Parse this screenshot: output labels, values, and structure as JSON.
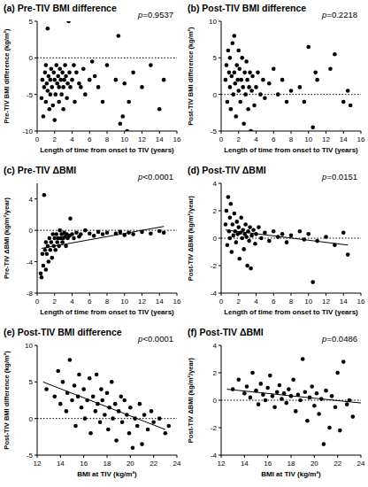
{
  "chart_data": [
    {
      "type": "scatter",
      "title": "(a) Pre-TIV BMI difference",
      "x_label": "Length of time from onset to TIV (years)",
      "y_label": "Pre-TIV BMI difference (kg/m²)",
      "annotation": "p=0.9537",
      "color": "#000000",
      "marker": "circle",
      "x": [
        0.5,
        0.6,
        0.7,
        0.8,
        0.9,
        1,
        1,
        1.1,
        1.2,
        1.2,
        1.3,
        1.4,
        1.5,
        1.5,
        1.6,
        1.7,
        1.8,
        1.9,
        2,
        2,
        2.1,
        2.2,
        2.3,
        2.4,
        2.5,
        2.5,
        2.6,
        2.7,
        2.8,
        2.9,
        3,
        3,
        3.1,
        3.2,
        3.3,
        3.4,
        3.5,
        3.6,
        3.7,
        3.8,
        4,
        4.2,
        4.3,
        4.5,
        4.8,
        5,
        5.3,
        5.5,
        6,
        6.3,
        6.6,
        7,
        7.5,
        8,
        9,
        9.3,
        9.5,
        9.8,
        10,
        10.3,
        10.5,
        11,
        12,
        13,
        14,
        14.5
      ],
      "values": [
        -5.5,
        -3,
        -8,
        -4,
        -2,
        -6,
        -1,
        -3.5,
        -4.5,
        4,
        -2.5,
        -7,
        -3,
        -5,
        -1.5,
        -4,
        -6.5,
        -2,
        -3,
        -8.5,
        -5,
        -1,
        -3.5,
        -2.5,
        -6,
        -4,
        -1.5,
        -3,
        -5,
        -2,
        -4,
        -7,
        -3,
        -1,
        -2.5,
        -5.5,
        -3.5,
        5,
        -2,
        -4,
        -3,
        -1,
        -6,
        -2,
        -3.5,
        -4,
        -1.5,
        -5,
        -3,
        -0.5,
        -2.5,
        -4,
        -6,
        -1,
        -3,
        3,
        -9,
        -8,
        -3.5,
        -10,
        -6,
        -2,
        -4,
        -1,
        -7,
        -3
      ],
      "xlim": [
        0,
        16
      ],
      "xticks": [
        0,
        2,
        4,
        6,
        8,
        10,
        12,
        14,
        16
      ],
      "ylim": [
        -10,
        5
      ],
      "yticks": [
        -10,
        -5,
        0,
        5
      ],
      "reference_line": 0
    },
    {
      "type": "scatter",
      "title": "(b) Post-TIV BMI difference",
      "x_label": "Length of time from onset to TIV (years)",
      "y_label": "Post-TIV BMI difference (kg/m²)",
      "annotation": "p=0.2218",
      "color": "#000000",
      "marker": "circle",
      "x": [
        0.5,
        0.6,
        0.7,
        0.8,
        0.9,
        1,
        1,
        1.1,
        1.2,
        1.3,
        1.4,
        1.5,
        1.5,
        1.6,
        1.7,
        1.8,
        1.9,
        2,
        2,
        2.1,
        2.2,
        2.3,
        2.4,
        2.5,
        2.6,
        2.7,
        2.8,
        2.9,
        3,
        3.1,
        3.2,
        3.3,
        3.4,
        3.5,
        3.6,
        3.8,
        4,
        4.2,
        4.5,
        4.8,
        5,
        5.5,
        6,
        6.5,
        7,
        7.5,
        8,
        9,
        9.5,
        10,
        10.5,
        10.8,
        11,
        12.5,
        13,
        14,
        14.5,
        14.8
      ],
      "values": [
        2,
        4,
        -1,
        6,
        3,
        1,
        5,
        -2,
        2.5,
        7,
        0,
        3,
        8,
        1.5,
        -3,
        4,
        2,
        0.5,
        6,
        3.5,
        -1,
        2,
        5,
        1,
        -4,
        3,
        0,
        4.5,
        2,
        -2,
        1,
        3,
        -5,
        0.5,
        2.5,
        -1.5,
        1,
        3,
        0,
        2,
        -0.5,
        1.5,
        3.5,
        0,
        2,
        -1,
        0.5,
        1,
        -1,
        6.5,
        -4.5,
        3,
        2,
        3.5,
        5.5,
        -1,
        0.5,
        -1.5
      ],
      "xlim": [
        0,
        16
      ],
      "xticks": [
        0,
        2,
        4,
        6,
        8,
        10,
        12,
        14,
        16
      ],
      "ylim": [
        -5,
        10
      ],
      "yticks": [
        -5,
        0,
        5,
        10
      ],
      "reference_line": 0
    },
    {
      "type": "scatter",
      "title": "(c) Pre-TIV ΔBMI",
      "x_label": "Length of time from onset to TIV (years)",
      "y_label": "Pre-TIV ΔBMI (kg/m²/year)",
      "annotation": "p<0.0001",
      "color": "#000000",
      "marker": "circle",
      "x": [
        0.4,
        0.5,
        0.6,
        0.7,
        0.8,
        0.9,
        1,
        1,
        1.1,
        1.2,
        1.3,
        1.4,
        1.5,
        1.6,
        1.7,
        1.8,
        1.9,
        2,
        2.1,
        2.2,
        2.3,
        2.4,
        2.5,
        2.6,
        2.7,
        2.8,
        2.9,
        3,
        3.1,
        3.2,
        3.3,
        3.4,
        3.5,
        3.7,
        3.8,
        4,
        4.2,
        4.5,
        4.8,
        5,
        5.5,
        6,
        6.5,
        7,
        7.5,
        8,
        9,
        9.5,
        10,
        10.5,
        11,
        12,
        13,
        14,
        14.5
      ],
      "values": [
        -5.5,
        -6,
        -3,
        -4.5,
        4.5,
        -2.5,
        -5,
        -1.5,
        -3,
        -2,
        -4,
        -1,
        -2.5,
        -1.5,
        -3.5,
        -0.5,
        -2,
        -1,
        -2.5,
        -0.5,
        -1.5,
        -1,
        -2,
        0,
        -1,
        -0.5,
        -1.5,
        -1,
        -0.3,
        -0.8,
        -2,
        -0.5,
        -1,
        -0.7,
        1.5,
        -0.5,
        -1,
        -0.3,
        -0.8,
        -0.5,
        0,
        -0.4,
        -0.7,
        -0.2,
        -0.5,
        -0.3,
        -0.4,
        -0.2,
        -0.6,
        -0.3,
        -0.5,
        -0.2,
        -0.4,
        -0.1,
        -0.3
      ],
      "xlim": [
        0,
        16
      ],
      "xticks": [
        0,
        2,
        4,
        6,
        8,
        10,
        12,
        14,
        16
      ],
      "ylim": [
        -8,
        6
      ],
      "yticks": [
        -8,
        -4,
        0,
        4
      ],
      "reference_line": 0,
      "trend_line": {
        "x": [
          0.5,
          14.5
        ],
        "values": [
          -2.3,
          0.5
        ]
      }
    },
    {
      "type": "scatter",
      "title": "(d) Post-TIV ΔBMI",
      "x_label": "Length of time from onset to TIV (years)",
      "y_label": "Post-TIV ΔBMI (kg/m²/year)",
      "annotation": "p=0.0151",
      "color": "#000000",
      "marker": "circle",
      "x": [
        0.5,
        0.6,
        0.7,
        0.8,
        0.9,
        1,
        1,
        1.1,
        1.2,
        1.3,
        1.4,
        1.5,
        1.6,
        1.7,
        1.8,
        1.9,
        2,
        2.1,
        2.2,
        2.3,
        2.4,
        2.5,
        2.6,
        2.7,
        2.8,
        2.9,
        3,
        3.1,
        3.2,
        3.3,
        3.4,
        3.5,
        3.7,
        3.9,
        4,
        4.3,
        4.6,
        5,
        5.5,
        6,
        6.5,
        7,
        7.5,
        8,
        9,
        9.5,
        10,
        10.5,
        11,
        12,
        13,
        14,
        14.5
      ],
      "values": [
        1,
        2,
        -0.5,
        3,
        0.5,
        1.5,
        0,
        2.5,
        -1,
        1,
        0.2,
        1.8,
        0.5,
        -0.3,
        1.2,
        0.3,
        0.8,
        -1.5,
        0.4,
        1.5,
        0,
        0.6,
        -0.8,
        0.3,
        1,
        0.1,
        -2,
        0.5,
        -0.2,
        0.8,
        -2.2,
        0.2,
        0.6,
        -0.4,
        0.3,
        0.8,
        0,
        0.4,
        -0.2,
        0.5,
        0.1,
        0.3,
        -0.3,
        0.2,
        0.5,
        -0.1,
        0.3,
        -3.2,
        -0.2,
        0.1,
        -0.5,
        0.4,
        -1.2
      ],
      "xlim": [
        0,
        16
      ],
      "xticks": [
        0,
        2,
        4,
        6,
        8,
        10,
        12,
        14,
        16
      ],
      "ylim": [
        -4,
        4
      ],
      "yticks": [
        -4,
        -2,
        0,
        2,
        4
      ],
      "reference_line": 0,
      "trend_line": {
        "x": [
          0.5,
          14.5
        ],
        "values": [
          0.6,
          -0.5
        ]
      }
    },
    {
      "type": "scatter",
      "title": "(e) Post-TIV BMI difference",
      "x_label": "BMI at TIV (kg/m²)",
      "y_label": "Post-TIV BMI difference (kg/m²)",
      "annotation": "p<0.0001",
      "color": "#000000",
      "marker": "circle",
      "x": [
        12.8,
        13.5,
        13.8,
        14,
        14.2,
        14.5,
        14.6,
        14.8,
        15,
        15.2,
        15.3,
        15.5,
        15.6,
        15.8,
        16,
        16.1,
        16.3,
        16.5,
        16.6,
        16.8,
        17,
        17.1,
        17.2,
        17.4,
        17.5,
        17.6,
        17.8,
        18,
        18.1,
        18.2,
        18.4,
        18.5,
        18.7,
        18.8,
        19,
        19.2,
        19.3,
        19.5,
        19.7,
        19.9,
        20,
        20.2,
        20.4,
        20.6,
        20.8,
        21,
        21.2,
        21.5,
        21.8,
        22,
        22.5,
        23,
        23.3
      ],
      "values": [
        4,
        3,
        6.5,
        2,
        5,
        1,
        3.5,
        8,
        2.5,
        4.5,
        -1,
        3,
        6,
        1.5,
        4,
        0,
        2.5,
        5.5,
        -2,
        3,
        1,
        6,
        2,
        -0.5,
        4,
        2.5,
        0.5,
        3.5,
        -1.5,
        1.5,
        5,
        0,
        2,
        -3,
        1,
        3,
        -0.5,
        2.5,
        0.5,
        -2,
        1.5,
        -4,
        0,
        -1,
        2,
        -3.5,
        0.5,
        -1.5,
        1,
        -0.5,
        0,
        -2,
        -1
      ],
      "xlim": [
        12,
        24
      ],
      "xticks": [
        12,
        14,
        16,
        18,
        20,
        22,
        24
      ],
      "ylim": [
        -5,
        10
      ],
      "yticks": [
        -5,
        0,
        5,
        10
      ],
      "reference_line": 0,
      "trend_line": {
        "x": [
          12.5,
          23
        ],
        "values": [
          5,
          -1.5
        ]
      }
    },
    {
      "type": "scatter",
      "title": "(f) Post-TIV ΔBMI",
      "x_label": "BMI at TIV (kg/m²)",
      "y_label": "Post-TIV ΔBMI (kg/m²/year)",
      "annotation": "p=0.0486",
      "color": "#000000",
      "marker": "circle",
      "x": [
        13,
        13.5,
        14,
        14.2,
        14.5,
        14.7,
        15,
        15.2,
        15.4,
        15.6,
        15.8,
        16,
        16.2,
        16.4,
        16.6,
        16.8,
        17,
        17.2,
        17.4,
        17.6,
        17.8,
        18,
        18.2,
        18.4,
        18.6,
        18.8,
        19,
        19.2,
        19.4,
        19.6,
        19.8,
        20,
        20.2,
        20.4,
        20.6,
        20.8,
        21,
        21.3,
        21.5,
        21.8,
        22,
        22.2,
        22.5,
        22.8,
        23,
        23.3
      ],
      "values": [
        0.8,
        1.5,
        0.5,
        1,
        0.2,
        2,
        0.7,
        -0.3,
        1.2,
        0.4,
        0,
        0.9,
        1.8,
        0.3,
        -0.5,
        0.6,
        1.1,
        0.1,
        0.5,
        -0.2,
        0.8,
        0.3,
        1.5,
        -0.8,
        0.4,
        0,
        3,
        0.6,
        -1.5,
        0.2,
        1,
        -0.4,
        0.5,
        -1,
        0.1,
        -3.2,
        0.7,
        -2,
        0.3,
        -0.5,
        2,
        -2.2,
        2.8,
        -0.3,
        0,
        -1.2
      ],
      "xlim": [
        12,
        24
      ],
      "xticks": [
        12,
        14,
        16,
        18,
        20,
        22,
        24
      ],
      "ylim": [
        -4,
        4
      ],
      "yticks": [
        -4,
        -2,
        0,
        2,
        4
      ],
      "reference_line": 0,
      "trend_line": {
        "x": [
          12.5,
          24
        ],
        "values": [
          0.8,
          -0.2
        ]
      }
    }
  ]
}
